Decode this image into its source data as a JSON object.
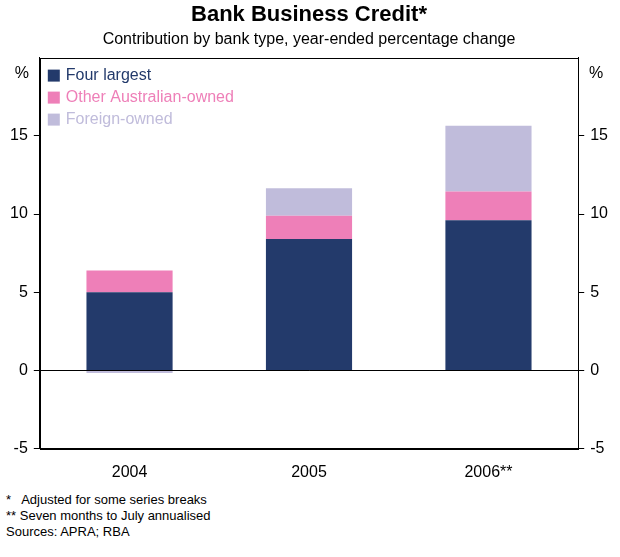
{
  "chart_data": {
    "type": "bar",
    "title": "Bank Business Credit*",
    "subtitle": "Contribution by bank type, year-ended percentage change",
    "y_label": "%",
    "y2_label": "%",
    "categories": [
      "2004",
      "2005",
      "2006**"
    ],
    "series": [
      {
        "name": "Four largest",
        "color": "#233a6b",
        "values": [
          5.0,
          8.4,
          9.6
        ]
      },
      {
        "name": "Other Australian-owned",
        "color": "#ee7fb8",
        "values": [
          1.4,
          1.5,
          1.85
        ]
      },
      {
        "name": "Foreign-owned",
        "color": "#c0bcdb",
        "values": [
          -0.15,
          1.75,
          4.2
        ]
      }
    ],
    "stacked": true,
    "ylim": [
      -5,
      20
    ],
    "yticks": [
      -5,
      0,
      5,
      10,
      15
    ],
    "y2lim": [
      -5,
      20
    ],
    "y2ticks": [
      -5,
      0,
      5,
      10,
      15
    ],
    "grid": false,
    "legend": "upper left",
    "notes": [
      "*   Adjusted for some series breaks",
      "** Seven months to July annualised",
      "Sources: APRA; RBA"
    ]
  }
}
